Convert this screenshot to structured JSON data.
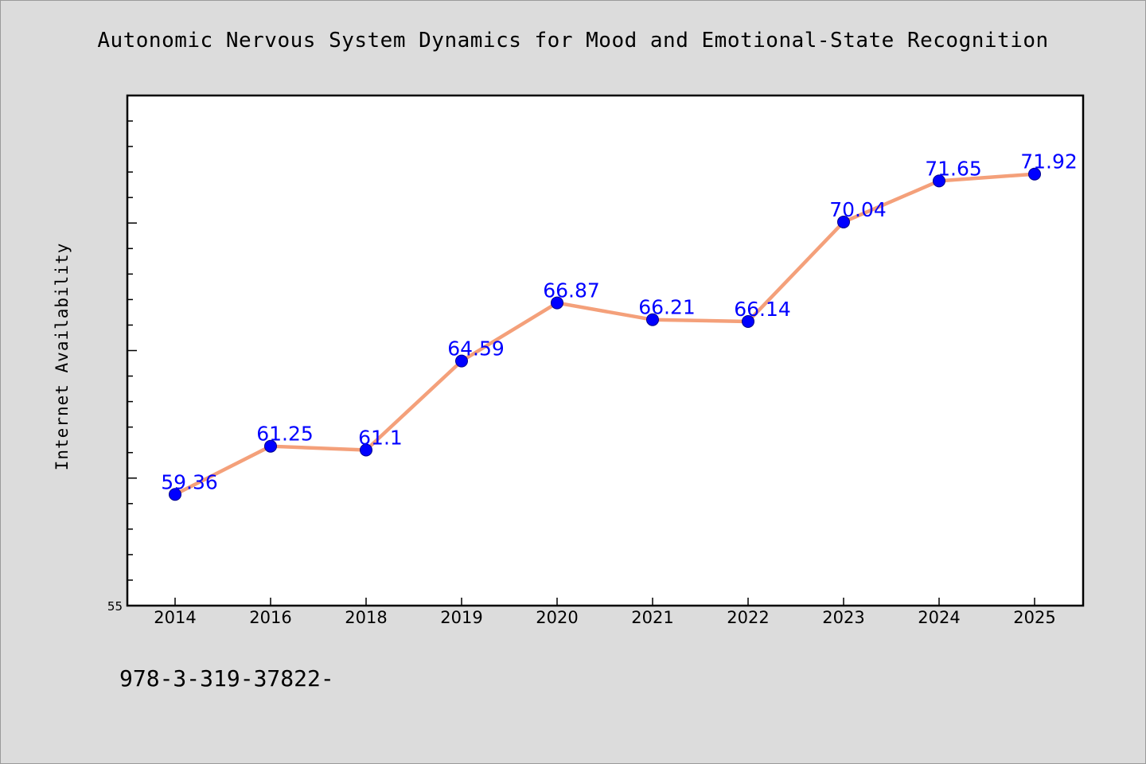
{
  "chart_data": {
    "type": "line",
    "title": "Autonomic Nervous System Dynamics for Mood and Emotional-State Recognition",
    "xlabel": "",
    "ylabel": "Internet Availability",
    "categories": [
      "2014",
      "2016",
      "2018",
      "2019",
      "2020",
      "2021",
      "2022",
      "2023",
      "2024",
      "2025"
    ],
    "values": [
      59.36,
      61.25,
      61.1,
      64.59,
      66.87,
      66.21,
      66.14,
      70.04,
      71.65,
      71.92
    ],
    "data_labels": [
      "59.36",
      "61.25",
      "61.1",
      "64.59",
      "66.87",
      "66.21",
      "66.14",
      "70.04",
      "71.65",
      "71.92"
    ],
    "ylim": [
      55,
      75
    ],
    "y_tick_labels": [
      "55"
    ],
    "grid": false,
    "line_color": "#f4a07a",
    "marker_color": "#0000ff",
    "label_color": "#0000ff"
  },
  "footer": {
    "text": "978-3-319-37822-"
  }
}
